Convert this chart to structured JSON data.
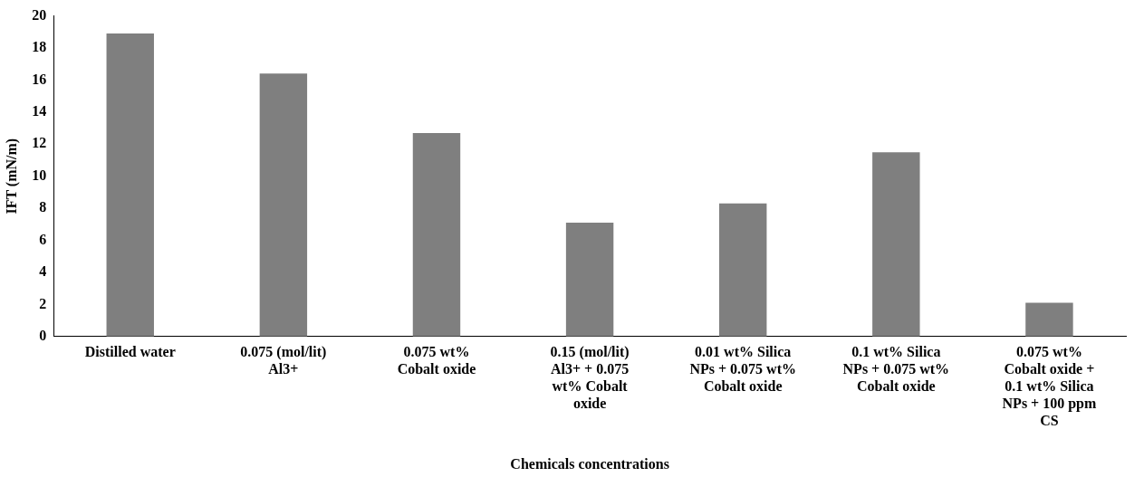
{
  "chart_data": {
    "type": "bar",
    "xlabel": "Chemicals concentrations",
    "ylabel": "IFT (mN/m)",
    "categories": [
      "Distilled water",
      "0.075 (mol/lit) Al3+",
      "0.075 wt% Cobalt oxide",
      "0.15 (mol/lit) Al3+     + 0.075 wt% Cobalt oxide",
      "0.01 wt% Silica NPs  + 0.075 wt% Cobalt oxide",
      "0.1 wt% Silica NPs    + 0.075 wt% Cobalt oxide",
      "0.075 wt% Cobalt oxide + 0.1 wt% Silica NPs + 100 ppm CS"
    ],
    "values": [
      18.9,
      16.4,
      12.7,
      7.1,
      8.3,
      11.5,
      2.1
    ],
    "color": "#7f7f7f",
    "ylim": [
      0,
      20
    ],
    "yticks": [
      0,
      2,
      4,
      6,
      8,
      10,
      12,
      14,
      16,
      18,
      20
    ],
    "grid": false,
    "legend": false
  }
}
